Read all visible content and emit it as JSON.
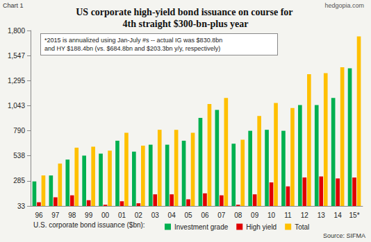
{
  "chart_data": {
    "type": "bar",
    "title": "US corporate high-yield bond issuance on course for 4th straight $300-bn-plus year",
    "annotations": [
      "Chart 1",
      "hedgopia.com",
      "*2015 is annualized using Jan-July #s -- actual IG was $830.8bn and HY $188.4bn (vs. $684.8bn and $203.3bn y/y, respectively)",
      "Source: SIFMA"
    ],
    "xlabel": "U.S. corporate bond issuance ($bn):",
    "categories": [
      "96",
      "97",
      "98",
      "99",
      "00",
      "01",
      "02",
      "03",
      "04",
      "05",
      "06",
      "07",
      "08",
      "09",
      "10",
      "11",
      "12",
      "13",
      "14",
      "15*"
    ],
    "series": [
      {
        "name": "Investment grade",
        "color": "#00b050",
        "values": [
          280,
          340,
          500,
          540,
          560,
          690,
          580,
          650,
          650,
          690,
          920,
          1000,
          660,
          790,
          800,
          790,
          1050,
          1050,
          1120,
          1420
        ]
      },
      {
        "name": "High yield",
        "color": "#e00000",
        "values": [
          70,
          120,
          140,
          90,
          45,
          80,
          60,
          150,
          150,
          100,
          160,
          140,
          45,
          150,
          270,
          230,
          320,
          330,
          310,
          320
        ]
      },
      {
        "name": "Total",
        "color": "#ffc000",
        "values": [
          340,
          460,
          620,
          630,
          590,
          770,
          640,
          800,
          800,
          770,
          1060,
          1120,
          700,
          940,
          1070,
          1020,
          1360,
          1370,
          1430,
          1740
        ]
      }
    ],
    "ylim": [
      33,
      1800
    ],
    "yticks": [
      33,
      285,
      538,
      790,
      {
        "value": 1043,
        "label": "1,043"
      },
      {
        "value": 1295,
        "label": "1,295"
      },
      {
        "value": 1547,
        "label": "1,547"
      },
      {
        "value": 1800,
        "label": "1,800"
      }
    ],
    "grid": false,
    "legend": "bottom"
  }
}
